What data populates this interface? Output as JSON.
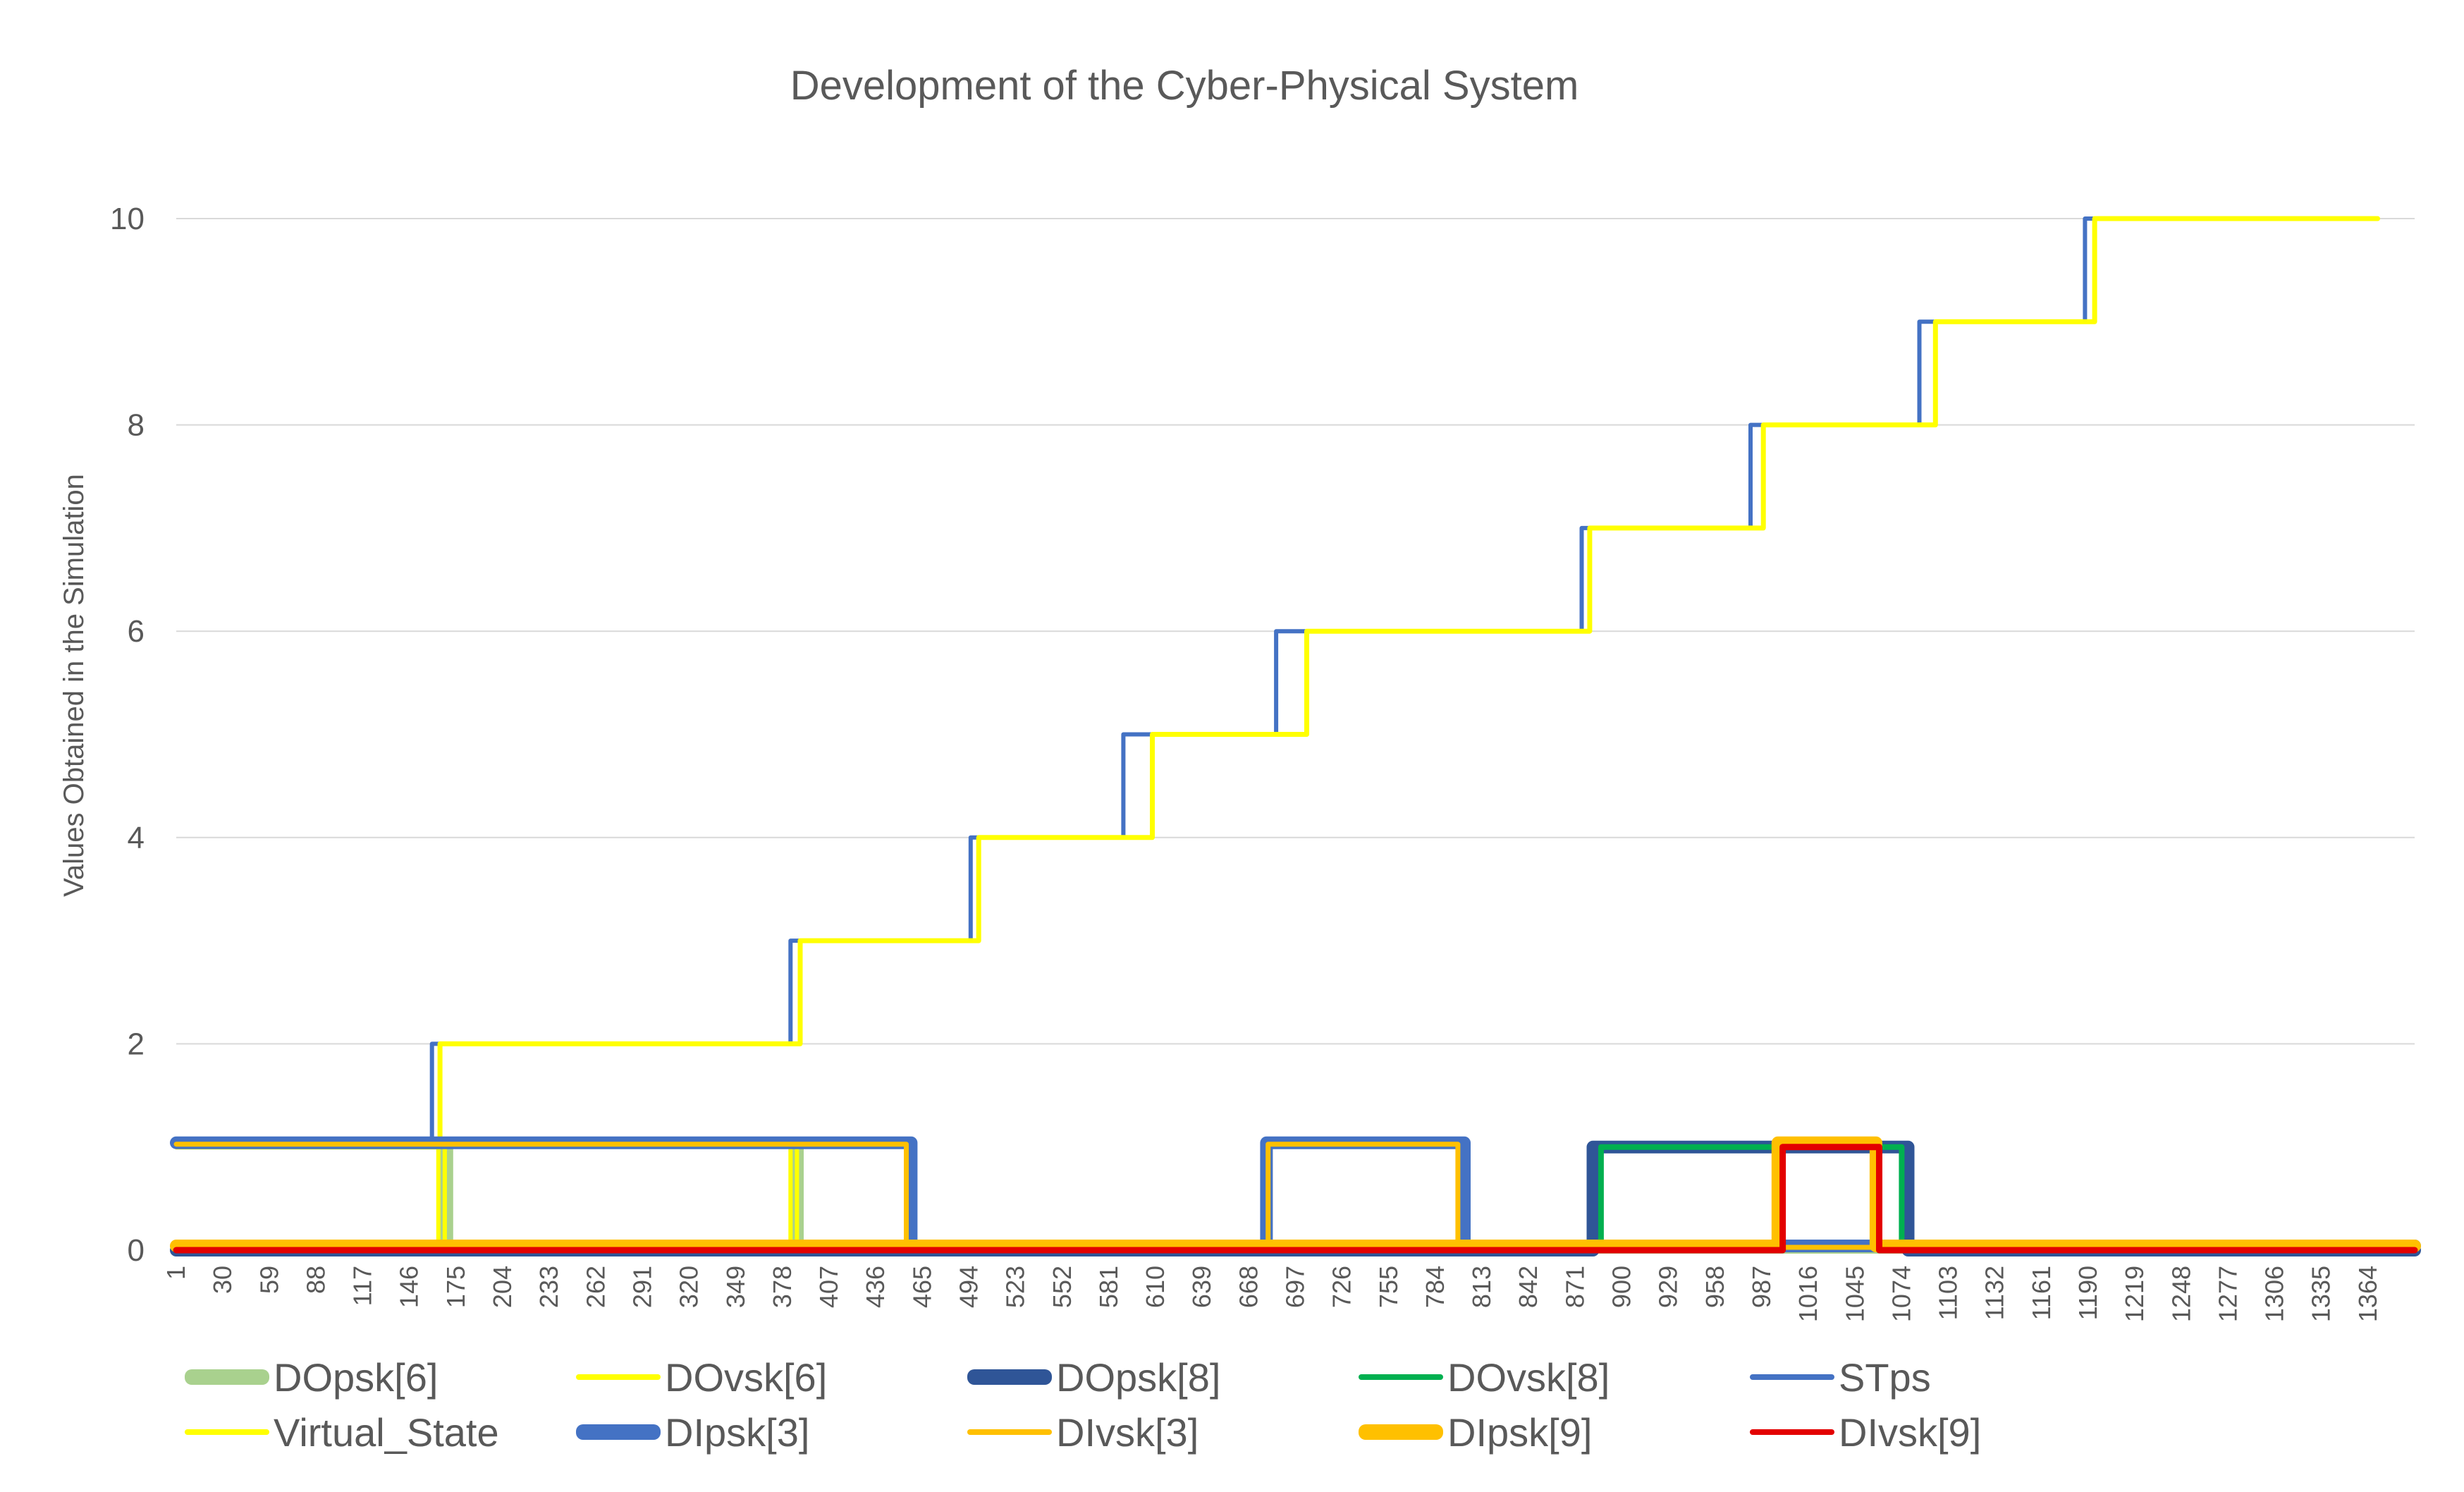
{
  "chart_data": {
    "type": "line",
    "title": "Development of the Cyber-Physical System",
    "xlabel": "",
    "ylabel": "Values Obtained in the Simulation",
    "ylim": [
      0,
      10
    ],
    "yticks": [
      0,
      2,
      4,
      6,
      8,
      10
    ],
    "x_range": [
      1,
      1393
    ],
    "x_step_labels": [
      "1",
      "30",
      "59",
      "88",
      "117",
      "146",
      "175",
      "204",
      "233",
      "262",
      "291",
      "320",
      "349",
      "378",
      "407",
      "436",
      "465",
      "494",
      "523",
      "552",
      "581",
      "610",
      "639",
      "668",
      "697",
      "726",
      "755",
      "784",
      "813",
      "842",
      "871",
      "900",
      "929",
      "958",
      "987",
      "1016",
      "1045",
      "1074",
      "1103",
      "1132",
      "1161",
      "1190",
      "1219",
      "1248",
      "1277",
      "1306",
      "1335",
      "1364"
    ],
    "grid": true,
    "legend_position": "bottom",
    "series": [
      {
        "name": "DOpsk[6]",
        "color": "#a9d18e",
        "points": [
          [
            1,
            0
          ],
          [
            167,
            0
          ],
          [
            167,
            1
          ],
          [
            171,
            1
          ],
          [
            171,
            0
          ],
          [
            385,
            0
          ],
          [
            385,
            1
          ],
          [
            389,
            1
          ],
          [
            389,
            0
          ],
          [
            1393,
            0
          ]
        ]
      },
      {
        "name": "DOvsk[6]",
        "color": "#ffff00",
        "points": [
          [
            1,
            0
          ],
          [
            164,
            0
          ],
          [
            164,
            1
          ],
          [
            168,
            1
          ],
          [
            168,
            0
          ],
          [
            383,
            0
          ],
          [
            383,
            1
          ],
          [
            387,
            1
          ],
          [
            387,
            0
          ],
          [
            1393,
            0
          ]
        ]
      },
      {
        "name": "DOpsk[8]",
        "color": "#2f5597",
        "points": [
          [
            1,
            0
          ],
          [
            882,
            0
          ],
          [
            882,
            1
          ],
          [
            1078,
            1
          ],
          [
            1078,
            0
          ],
          [
            1393,
            0
          ]
        ]
      },
      {
        "name": "DOvsk[8]",
        "color": "#00b050",
        "points": [
          [
            1,
            0
          ],
          [
            887,
            0
          ],
          [
            887,
            1
          ],
          [
            1074,
            1
          ],
          [
            1074,
            0
          ],
          [
            1393,
            0
          ]
        ]
      },
      {
        "name": "STps",
        "color": "#4472c4",
        "points": [
          [
            1,
            1
          ],
          [
            160,
            1
          ],
          [
            160,
            2
          ],
          [
            383,
            2
          ],
          [
            383,
            3
          ],
          [
            495,
            3
          ],
          [
            495,
            4
          ],
          [
            590,
            4
          ],
          [
            590,
            5
          ],
          [
            685,
            5
          ],
          [
            685,
            6
          ],
          [
            875,
            6
          ],
          [
            875,
            7
          ],
          [
            980,
            7
          ],
          [
            980,
            8
          ],
          [
            1085,
            8
          ],
          [
            1085,
            9
          ],
          [
            1188,
            9
          ],
          [
            1188,
            10
          ],
          [
            1370,
            10
          ]
        ]
      },
      {
        "name": "Virtual_State",
        "color": "#ffff00",
        "points": [
          [
            1,
            1
          ],
          [
            165,
            1
          ],
          [
            165,
            2
          ],
          [
            389,
            2
          ],
          [
            389,
            3
          ],
          [
            500,
            3
          ],
          [
            500,
            4
          ],
          [
            608,
            4
          ],
          [
            608,
            5
          ],
          [
            704,
            5
          ],
          [
            704,
            6
          ],
          [
            880,
            6
          ],
          [
            880,
            7
          ],
          [
            988,
            7
          ],
          [
            988,
            8
          ],
          [
            1095,
            8
          ],
          [
            1095,
            9
          ],
          [
            1194,
            9
          ],
          [
            1194,
            10
          ],
          [
            1370,
            10
          ]
        ]
      },
      {
        "name": "DIpsk[3]",
        "color": "#4472c4",
        "points": [
          [
            1,
            1
          ],
          [
            458,
            1
          ],
          [
            458,
            0
          ],
          [
            679,
            0
          ],
          [
            679,
            1
          ],
          [
            802,
            1
          ],
          [
            802,
            0
          ],
          [
            1393,
            0
          ]
        ]
      },
      {
        "name": "DIvsk[3]",
        "color": "#ffc000",
        "points": [
          [
            1,
            1
          ],
          [
            455,
            1
          ],
          [
            455,
            0
          ],
          [
            680,
            0
          ],
          [
            680,
            1
          ],
          [
            798,
            1
          ],
          [
            798,
            0
          ],
          [
            1393,
            0
          ]
        ]
      },
      {
        "name": "DIpsk[9]",
        "color": "#ffc000",
        "points": [
          [
            1,
            0
          ],
          [
            997,
            0
          ],
          [
            997,
            1
          ],
          [
            1058,
            1
          ],
          [
            1058,
            0
          ],
          [
            1393,
            0
          ]
        ]
      },
      {
        "name": "DIvsk[9]",
        "color": "#e30000",
        "points": [
          [
            1,
            0
          ],
          [
            1000,
            0
          ],
          [
            1000,
            1
          ],
          [
            1060,
            1
          ],
          [
            1060,
            0
          ],
          [
            1393,
            0
          ]
        ]
      }
    ]
  }
}
